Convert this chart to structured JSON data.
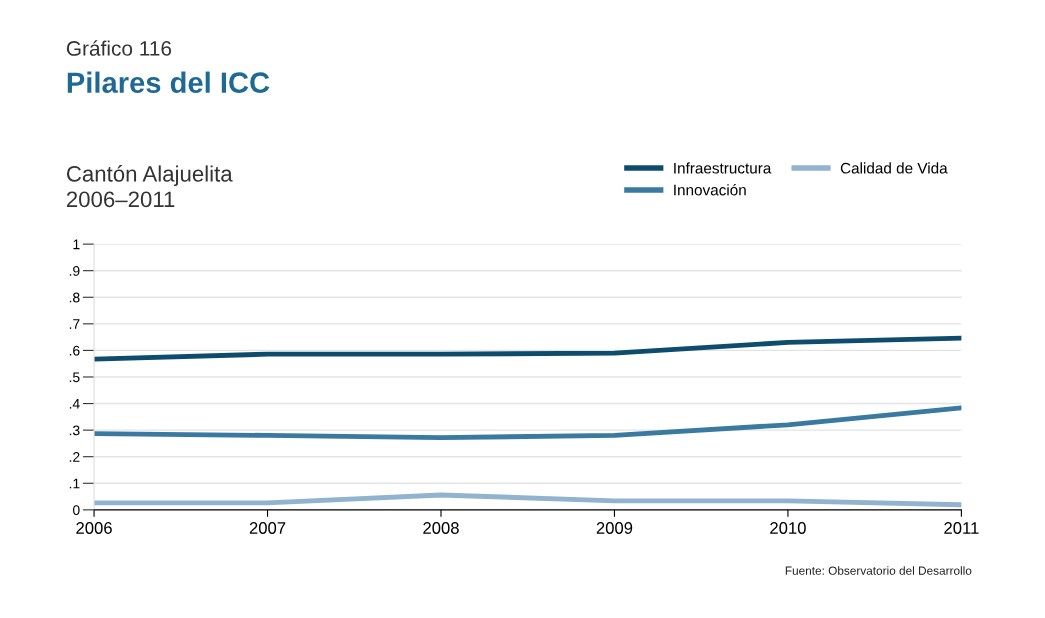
{
  "chart_data": {
    "type": "line",
    "title": "Pilares del ICC",
    "subtitle": "Cantón Alajuelita\n2006–2011",
    "annotations": [
      "Gráfico 116",
      "Fuente: Observatorio del Desarrollo"
    ],
    "x": [
      2006,
      2007,
      2008,
      2009,
      2010,
      2011
    ],
    "series": [
      {
        "name": "Infraestructura",
        "color": "#0e4c6d",
        "values": [
          0.567,
          0.586,
          0.586,
          0.59,
          0.63,
          0.646
        ]
      },
      {
        "name": "Innovación",
        "color": "#3b7aa0",
        "values": [
          0.287,
          0.28,
          0.272,
          0.28,
          0.32,
          0.384
        ]
      },
      {
        "name": "Calidad de Vida",
        "color": "#92b3cf",
        "values": [
          0.026,
          0.026,
          0.056,
          0.034,
          0.034,
          0.019
        ]
      }
    ],
    "xlim": [
      2006,
      2011
    ],
    "xticks": [
      2006,
      2007,
      2008,
      2009,
      2010,
      2011
    ],
    "ylim": [
      0,
      1
    ],
    "yticks": [
      0,
      {
        "value": 0.1,
        "label": ".1"
      },
      {
        "value": 0.2,
        "label": ".2"
      },
      {
        "value": 0.3,
        "label": ".3"
      },
      {
        "value": 0.4,
        "label": ".4"
      },
      {
        "value": 0.5,
        "label": ".5"
      },
      {
        "value": 0.6,
        "label": ".6"
      },
      {
        "value": 0.7,
        "label": ".7"
      },
      {
        "value": 0.8,
        "label": ".8"
      },
      {
        "value": 0.9,
        "label": ".9"
      },
      1
    ],
    "grid": "y",
    "legend": "top right",
    "marker": "none",
    "line_style": "solid"
  }
}
